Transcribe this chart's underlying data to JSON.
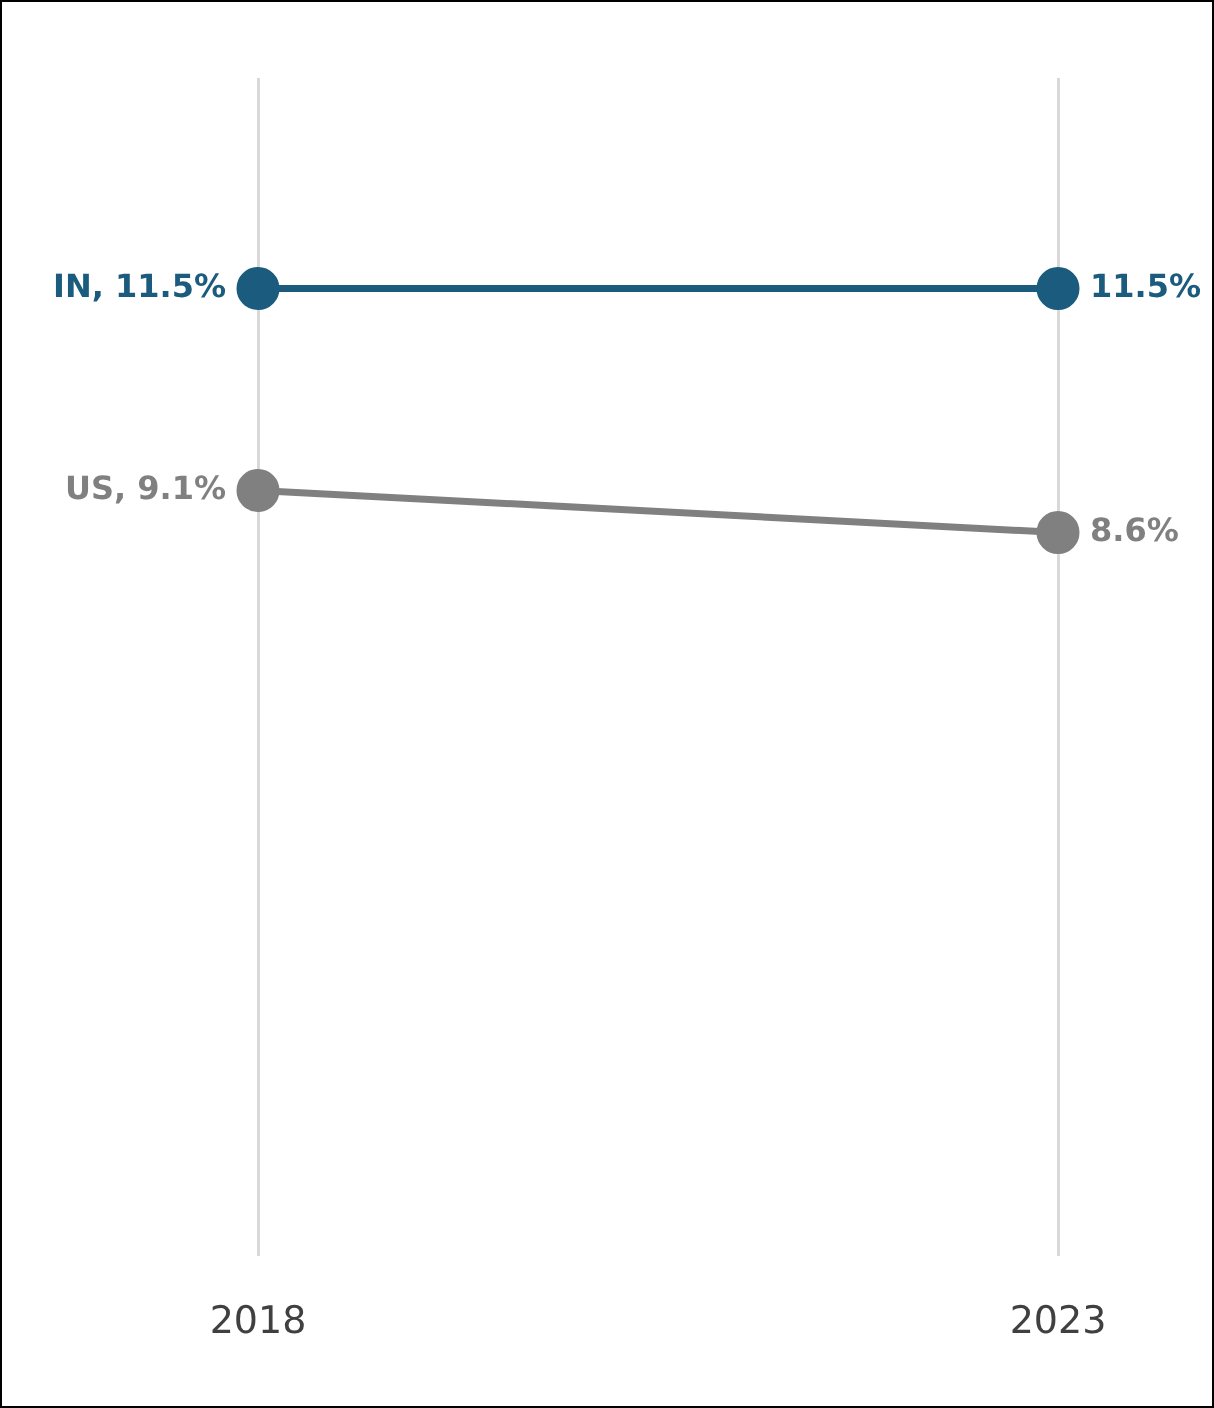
{
  "chart_data": {
    "type": "line",
    "categories": [
      "2018",
      "2023"
    ],
    "series": [
      {
        "color": "#1b5b7e",
        "values": [
          11.5,
          11.5
        ],
        "value_labels": [
          "IN, 11.5%",
          "11.5%"
        ]
      },
      {
        "color": "#808080",
        "values": [
          9.1,
          8.6
        ],
        "value_labels": [
          "US, 9.1%",
          "8.6%"
        ]
      }
    ],
    "ylim": [
      0,
      14
    ],
    "grid": "x",
    "tick_labels": "x",
    "marker": "circle",
    "line_style": "solid",
    "legend": false
  }
}
